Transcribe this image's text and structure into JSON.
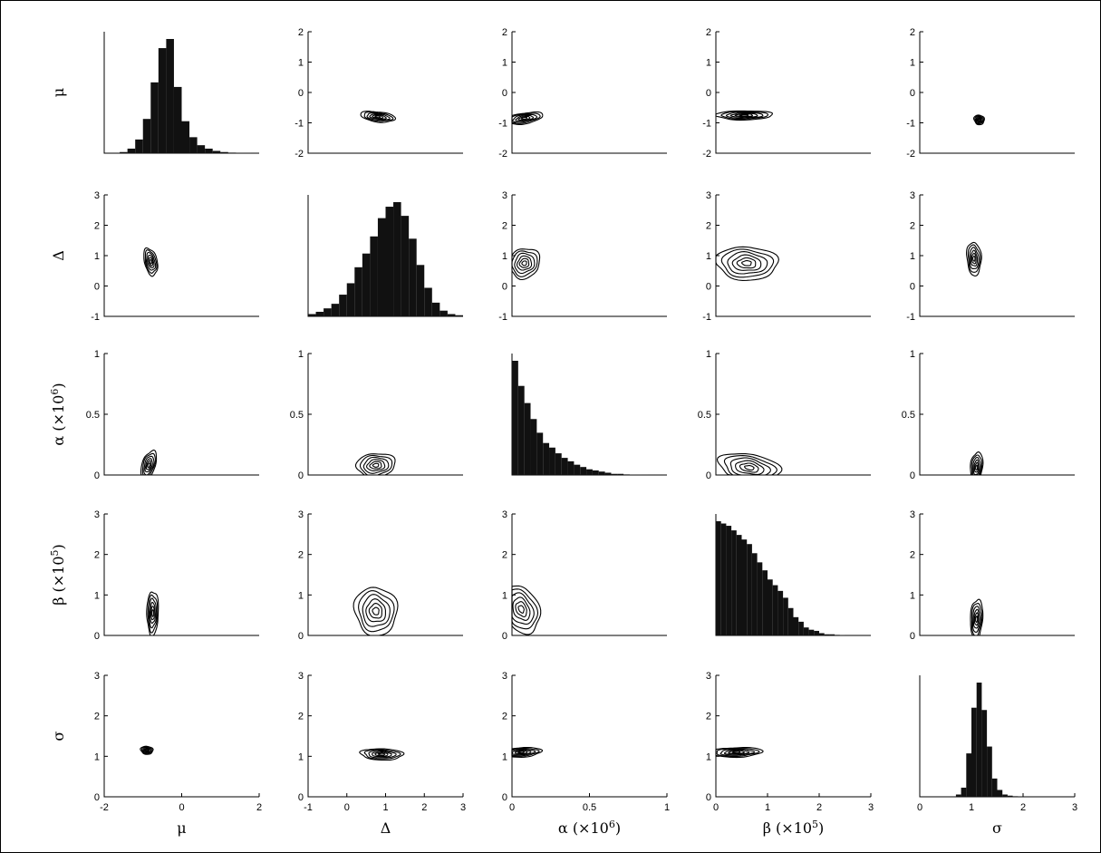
{
  "chart_data": {
    "type": "pair-plot",
    "parameters": [
      "μ",
      "Δ",
      "α (×10⁶)",
      "β (×10⁵)",
      "σ"
    ],
    "axis_labels": {
      "x": [
        "μ",
        "Δ",
        "α (×10",
        "β (×10",
        "σ"
      ],
      "x_sup": [
        "",
        "",
        "6",
        "5",
        ""
      ],
      "x_close": [
        "",
        "",
        ")",
        ")",
        ""
      ],
      "y": [
        "μ",
        "Δ",
        "α (×10",
        "β (×10",
        "σ"
      ],
      "y_sup": [
        "",
        "",
        "6",
        "5",
        ""
      ],
      "y_close": [
        "",
        "",
        ")",
        ")",
        ""
      ]
    },
    "ranges": [
      [
        -2,
        2
      ],
      [
        -1,
        3
      ],
      [
        0,
        1
      ],
      [
        0,
        3
      ],
      [
        0,
        3
      ]
    ],
    "ticks": [
      [
        "-2",
        "-1",
        "0",
        "1",
        "2"
      ],
      [
        "-1",
        "0",
        "1",
        "2",
        "3"
      ],
      [
        "0",
        "0.5",
        "1"
      ],
      [
        "0",
        "1",
        "2",
        "3"
      ],
      [
        "0",
        "1",
        "2",
        "3"
      ]
    ],
    "tick_values": [
      [
        -2,
        -1,
        0,
        1,
        2
      ],
      [
        -1,
        0,
        1,
        2,
        3
      ],
      [
        0,
        0.5,
        1
      ],
      [
        0,
        1,
        2,
        3
      ],
      [
        0,
        1,
        2,
        3
      ]
    ],
    "x_tick_values": [
      [
        -2,
        0,
        2
      ],
      [
        -1,
        0,
        1,
        2,
        3
      ],
      [
        0,
        0.5,
        1
      ],
      [
        0,
        1,
        2,
        3
      ],
      [
        0,
        1,
        2,
        3
      ]
    ],
    "x_ticks": [
      [
        "-2",
        "0",
        "2"
      ],
      [
        "-1",
        "0",
        "1",
        "2",
        "3"
      ],
      [
        "0",
        "0.5",
        "1"
      ],
      [
        "0",
        "1",
        "2",
        "3"
      ],
      [
        "0",
        "1",
        "2",
        "3"
      ]
    ],
    "histograms": [
      {
        "param": "μ",
        "bin_start": -2,
        "bin_width": 0.2,
        "relative_heights": [
          0,
          0,
          0.01,
          0.04,
          0.12,
          0.3,
          0.62,
          0.92,
          1.0,
          0.58,
          0.28,
          0.14,
          0.07,
          0.04,
          0.02,
          0.01,
          0.005,
          0.003,
          0.002,
          0.001
        ]
      },
      {
        "param": "Δ",
        "bin_start": -1,
        "bin_width": 0.2,
        "relative_heights": [
          0.02,
          0.04,
          0.07,
          0.11,
          0.19,
          0.29,
          0.43,
          0.55,
          0.7,
          0.86,
          0.96,
          1.0,
          0.88,
          0.68,
          0.45,
          0.25,
          0.12,
          0.05,
          0.02,
          0.01
        ]
      },
      {
        "param": "α (×10⁶)",
        "bin_start": 0,
        "bin_width": 0.04,
        "relative_heights": [
          1.0,
          0.78,
          0.63,
          0.49,
          0.37,
          0.28,
          0.24,
          0.19,
          0.15,
          0.12,
          0.09,
          0.07,
          0.05,
          0.04,
          0.03,
          0.02,
          0.01,
          0.01,
          0.005,
          0.004,
          0.003,
          0.002,
          0.001,
          0.001,
          0.001
        ]
      },
      {
        "param": "β (×10⁵)",
        "bin_start": 0,
        "bin_width": 0.1,
        "relative_heights": [
          1.0,
          0.98,
          0.96,
          0.92,
          0.88,
          0.84,
          0.8,
          0.72,
          0.64,
          0.57,
          0.49,
          0.44,
          0.39,
          0.33,
          0.24,
          0.16,
          0.12,
          0.07,
          0.05,
          0.04,
          0.02,
          0.01,
          0.01,
          0.005,
          0.003
        ]
      },
      {
        "param": "σ",
        "bin_start": 0,
        "bin_width": 0.1,
        "relative_heights": [
          0,
          0,
          0,
          0,
          0,
          0,
          0,
          0.02,
          0.08,
          0.38,
          0.78,
          1.0,
          0.76,
          0.44,
          0.16,
          0.06,
          0.02,
          0.01,
          0.005,
          0.002
        ]
      }
    ],
    "joint_densities": [
      {
        "x": "μ",
        "y": "Δ",
        "center": [
          -0.8,
          0.8
        ],
        "spread": [
          0.18,
          0.45
        ],
        "correlation": -0.35
      },
      {
        "x": "μ",
        "y": "α (×10⁶)",
        "center": [
          -0.85,
          0.08
        ],
        "spread": [
          0.2,
          0.12
        ],
        "correlation": 0.45
      },
      {
        "x": "μ",
        "y": "β (×10⁵)",
        "center": [
          -0.75,
          0.55
        ],
        "spread": [
          0.15,
          0.55
        ],
        "correlation": 0.05
      },
      {
        "x": "μ",
        "y": "σ",
        "center": [
          -0.9,
          1.15
        ],
        "spread": [
          0.16,
          0.1
        ],
        "correlation": -0.1
      },
      {
        "x": "Δ",
        "y": "α (×10⁶)",
        "center": [
          0.75,
          0.08
        ],
        "spread": [
          0.5,
          0.1
        ],
        "correlation": 0.1
      },
      {
        "x": "Δ",
        "y": "β (×10⁵)",
        "center": [
          0.75,
          0.6
        ],
        "spread": [
          0.55,
          0.6
        ],
        "correlation": -0.05
      },
      {
        "x": "Δ",
        "y": "σ",
        "center": [
          0.9,
          1.05
        ],
        "spread": [
          0.55,
          0.14
        ],
        "correlation": -0.1
      },
      {
        "x": "α (×10⁶)",
        "y": "β (×10⁵)",
        "center": [
          0.06,
          0.65
        ],
        "spread": [
          0.12,
          0.6
        ],
        "correlation": -0.3
      },
      {
        "x": "α (×10⁶)",
        "y": "σ",
        "center": [
          0.06,
          1.1
        ],
        "spread": [
          0.13,
          0.12
        ],
        "correlation": 0.2
      },
      {
        "x": "β (×10⁵)",
        "y": "σ",
        "center": [
          0.4,
          1.1
        ],
        "spread": [
          0.5,
          0.12
        ],
        "correlation": 0.15
      }
    ]
  }
}
